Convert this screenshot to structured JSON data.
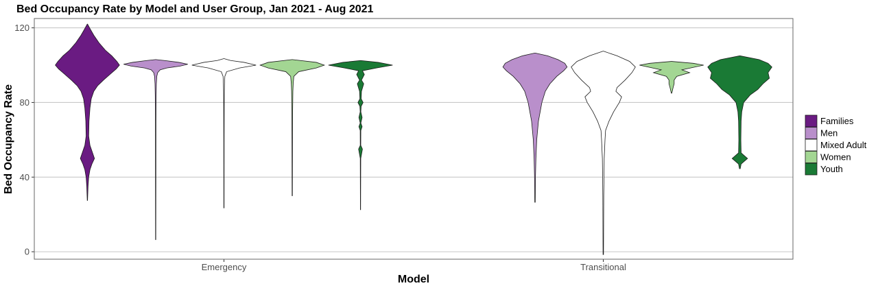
{
  "chart_data": {
    "type": "violin",
    "title": "Bed Occupancy Rate by Model and User Group, Jan 2021 - Aug 2021",
    "xlabel": "Model",
    "ylabel": "Bed Occupancy Rate",
    "categories": [
      "Emergency",
      "Transitional"
    ],
    "ylim": [
      -4,
      125
    ],
    "yticks": [
      0,
      40,
      80,
      120
    ],
    "grid": "horizontal",
    "legend_position": "right",
    "colors": {
      "Families": "#6a1b82",
      "Men": "#b98fcb",
      "Mixed Adult": "#ffffff",
      "Women": "#a3d693",
      "Youth": "#1a7a35"
    },
    "series": [
      {
        "name": "Families",
        "violins": [
          {
            "model": "Emergency",
            "profile": [
              [
                27.5,
                0.002
              ],
              [
                35,
                0.01
              ],
              [
                40,
                0.02
              ],
              [
                44,
                0.04
              ],
              [
                47,
                0.07
              ],
              [
                50,
                0.11
              ],
              [
                53,
                0.08
              ],
              [
                57,
                0.04
              ],
              [
                62,
                0.02
              ],
              [
                70,
                0.025
              ],
              [
                77,
                0.04
              ],
              [
                82,
                0.06
              ],
              [
                86,
                0.1
              ],
              [
                89,
                0.16
              ],
              [
                92,
                0.25
              ],
              [
                95,
                0.35
              ],
              [
                98,
                0.45
              ],
              [
                100,
                0.5
              ],
              [
                102,
                0.46
              ],
              [
                105,
                0.38
              ],
              [
                108,
                0.28
              ],
              [
                112,
                0.18
              ],
              [
                116,
                0.1
              ],
              [
                119,
                0.05
              ],
              [
                122,
                0.002
              ]
            ]
          }
        ]
      },
      {
        "name": "Men",
        "violins": [
          {
            "model": "Emergency",
            "profile": [
              [
                6.5,
                0.003
              ],
              [
                40,
                0.005
              ],
              [
                70,
                0.006
              ],
              [
                78,
                0.008
              ],
              [
                84,
                0.01
              ],
              [
                90,
                0.015
              ],
              [
                94,
                0.025
              ],
              [
                96,
                0.045
              ],
              [
                97.5,
                0.1
              ],
              [
                98.5,
                0.25
              ],
              [
                99.5,
                0.55
              ],
              [
                100.5,
                0.72
              ],
              [
                101.5,
                0.52
              ],
              [
                102.5,
                0.2
              ],
              [
                103,
                0.002
              ]
            ]
          },
          {
            "model": "Transitional",
            "profile": [
              [
                26.5,
                0.002
              ],
              [
                40,
                0.004
              ],
              [
                50,
                0.008
              ],
              [
                60,
                0.015
              ],
              [
                70,
                0.03
              ],
              [
                80,
                0.06
              ],
              [
                86,
                0.09
              ],
              [
                90,
                0.13
              ],
              [
                94,
                0.19
              ],
              [
                97,
                0.25
              ],
              [
                99,
                0.28
              ],
              [
                101,
                0.26
              ],
              [
                103,
                0.2
              ],
              [
                105,
                0.11
              ],
              [
                106.5,
                0.002
              ]
            ]
          }
        ]
      },
      {
        "name": "Mixed Adult",
        "violins": [
          {
            "model": "Emergency",
            "profile": [
              [
                23.5,
                0.003
              ],
              [
                60,
                0.004
              ],
              [
                80,
                0.006
              ],
              [
                86,
                0.008
              ],
              [
                90,
                0.012
              ],
              [
                94,
                0.02
              ],
              [
                96.5,
                0.06
              ],
              [
                98.5,
                0.35
              ],
              [
                100,
                0.72
              ],
              [
                101.5,
                0.45
              ],
              [
                102.5,
                0.15
              ],
              [
                103.5,
                0.002
              ]
            ]
          },
          {
            "model": "Transitional",
            "profile": [
              [
                -1.5,
                0.002
              ],
              [
                30,
                0.004
              ],
              [
                50,
                0.008
              ],
              [
                60,
                0.015
              ],
              [
                65,
                0.02
              ],
              [
                70,
                0.05
              ],
              [
                75,
                0.09
              ],
              [
                80,
                0.14
              ],
              [
                83,
                0.16
              ],
              [
                86,
                0.11
              ],
              [
                88,
                0.12
              ],
              [
                92,
                0.19
              ],
              [
                96,
                0.25
              ],
              [
                99,
                0.28
              ],
              [
                102,
                0.23
              ],
              [
                105,
                0.12
              ],
              [
                107.5,
                0.002
              ]
            ]
          }
        ]
      },
      {
        "name": "Women",
        "violins": [
          {
            "model": "Emergency",
            "profile": [
              [
                30,
                0.003
              ],
              [
                60,
                0.005
              ],
              [
                75,
                0.007
              ],
              [
                86,
                0.012
              ],
              [
                90,
                0.018
              ],
              [
                94,
                0.03
              ],
              [
                96.5,
                0.12
              ],
              [
                98.5,
                0.45
              ],
              [
                100,
                0.6
              ],
              [
                101.5,
                0.45
              ],
              [
                103,
                0.002
              ]
            ]
          },
          {
            "model": "Transitional",
            "profile": [
              [
                85,
                0.005
              ],
              [
                88,
                0.03
              ],
              [
                90,
                0.05
              ],
              [
                92,
                0.05
              ],
              [
                94,
                0.1
              ],
              [
                96,
                0.35
              ],
              [
                97.5,
                0.2
              ],
              [
                99,
                0.45
              ],
              [
                100,
                0.62
              ],
              [
                101,
                0.42
              ],
              [
                102,
                0.002
              ]
            ]
          }
        ]
      },
      {
        "name": "Youth",
        "violins": [
          {
            "model": "Emergency",
            "profile": [
              [
                22.5,
                0.003
              ],
              [
                30,
                0.004
              ],
              [
                40,
                0.006
              ],
              [
                50,
                0.008
              ],
              [
                55,
                0.06
              ],
              [
                57,
                0.008
              ],
              [
                65,
                0.01
              ],
              [
                67,
                0.05
              ],
              [
                69,
                0.01
              ],
              [
                72,
                0.05
              ],
              [
                75,
                0.01
              ],
              [
                78,
                0.02
              ],
              [
                80,
                0.08
              ],
              [
                82,
                0.02
              ],
              [
                86,
                0.03
              ],
              [
                90,
                0.1
              ],
              [
                92,
                0.03
              ],
              [
                95,
                0.12
              ],
              [
                97,
                0.06
              ],
              [
                98.5,
                0.5
              ],
              [
                100,
                1.0
              ],
              [
                101.5,
                0.55
              ],
              [
                102.5,
                0.002
              ]
            ]
          },
          {
            "model": "Transitional",
            "profile": [
              [
                44.5,
                0.003
              ],
              [
                47,
                0.01
              ],
              [
                50,
                0.06
              ],
              [
                53,
                0.01
              ],
              [
                60,
                0.008
              ],
              [
                70,
                0.01
              ],
              [
                75,
                0.015
              ],
              [
                80,
                0.03
              ],
              [
                84,
                0.08
              ],
              [
                87,
                0.14
              ],
              [
                90,
                0.18
              ],
              [
                93,
                0.23
              ],
              [
                96,
                0.22
              ],
              [
                99,
                0.25
              ],
              [
                101,
                0.22
              ],
              [
                103,
                0.15
              ],
              [
                105,
                0.002
              ]
            ]
          }
        ]
      }
    ]
  }
}
